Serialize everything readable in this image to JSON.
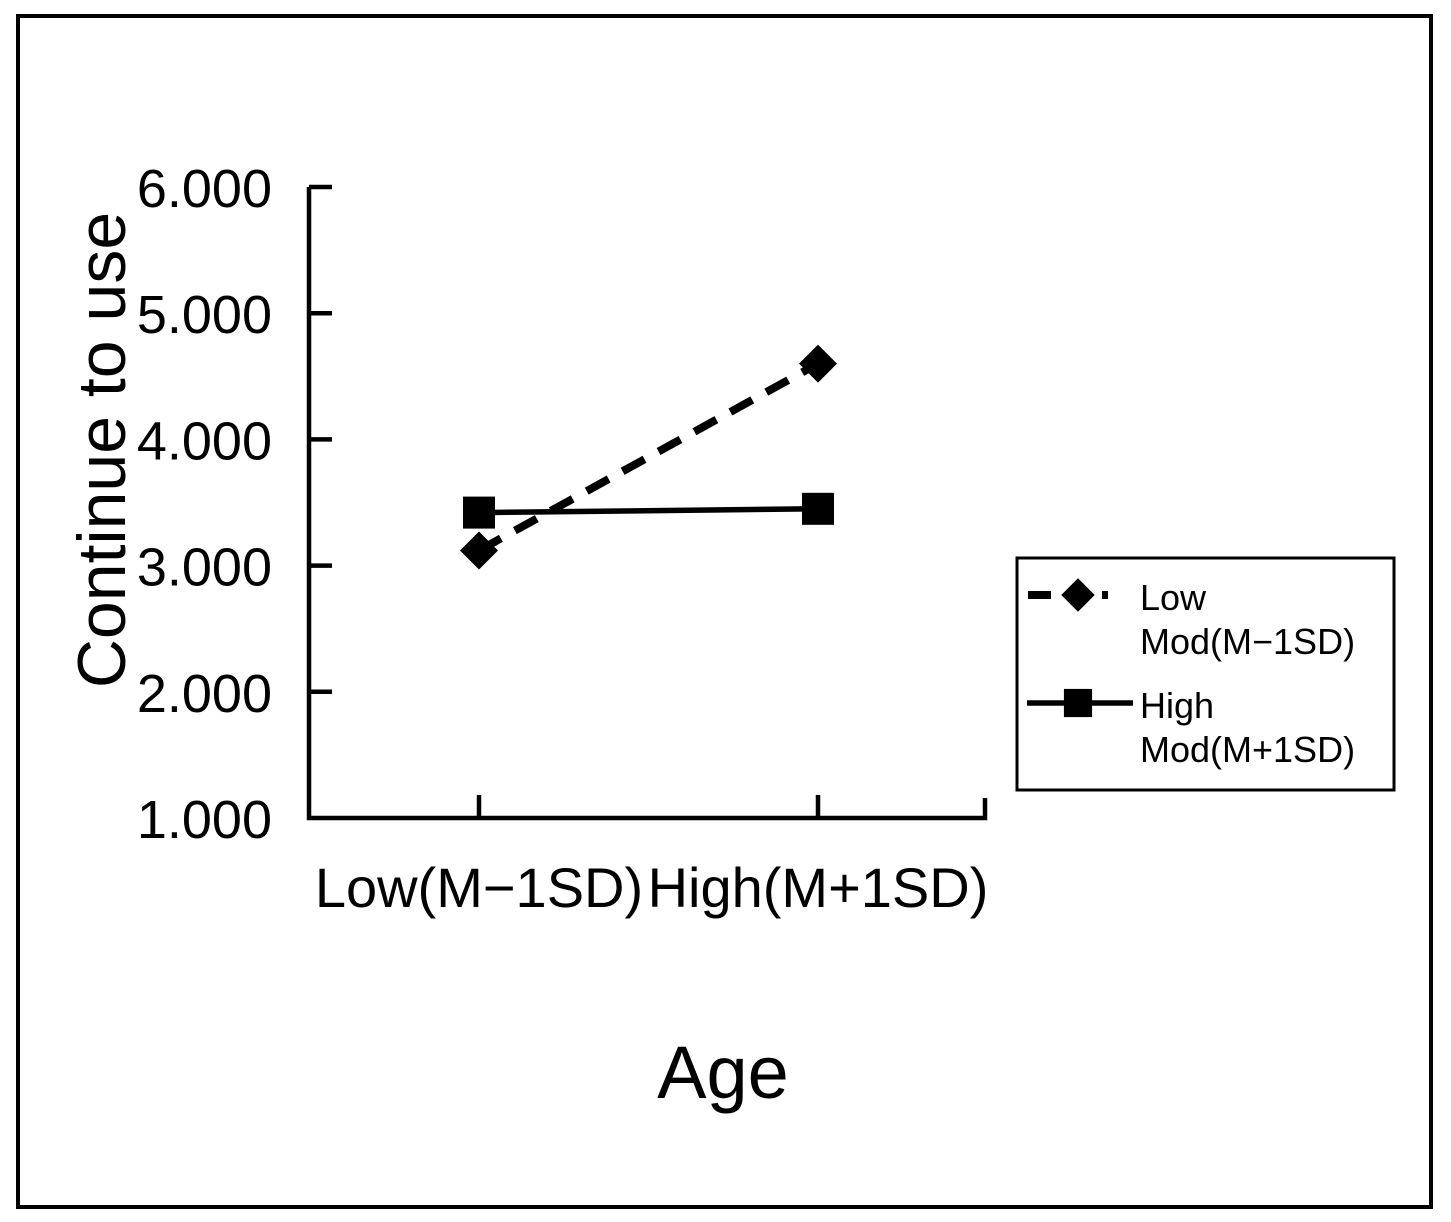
{
  "figure": {
    "background_color": "#ffffff",
    "border_color": "#000000",
    "text_color": "#000000"
  },
  "chart_data": {
    "type": "line",
    "title": "",
    "xlabel": "Age",
    "ylabel": "Continue to use",
    "categories": [
      "Low(M−1SD)",
      "High(M+1SD)"
    ],
    "ylim": [
      1.0,
      6.0
    ],
    "ytick_values": [
      6,
      5,
      4,
      3,
      2,
      1
    ],
    "ytick_labels": [
      "6.000",
      "5.000",
      "4.000",
      "3.000",
      "2.000",
      "1.000"
    ],
    "grid": false,
    "tick_direction": "in",
    "legend_position": "right-middle",
    "series": [
      {
        "name": "Low Mod(M−1SD)",
        "legend_label_lines": [
          "Low",
          "Mod(M−1SD)"
        ],
        "line_style": "dashed",
        "marker": "diamond",
        "color": "#000000",
        "values": [
          3.12,
          4.6
        ]
      },
      {
        "name": "High Mod(M+1SD)",
        "legend_label_lines": [
          "High",
          "Mod(M+1SD)"
        ],
        "line_style": "solid",
        "marker": "square",
        "color": "#000000",
        "values": [
          3.42,
          3.45
        ]
      }
    ]
  }
}
